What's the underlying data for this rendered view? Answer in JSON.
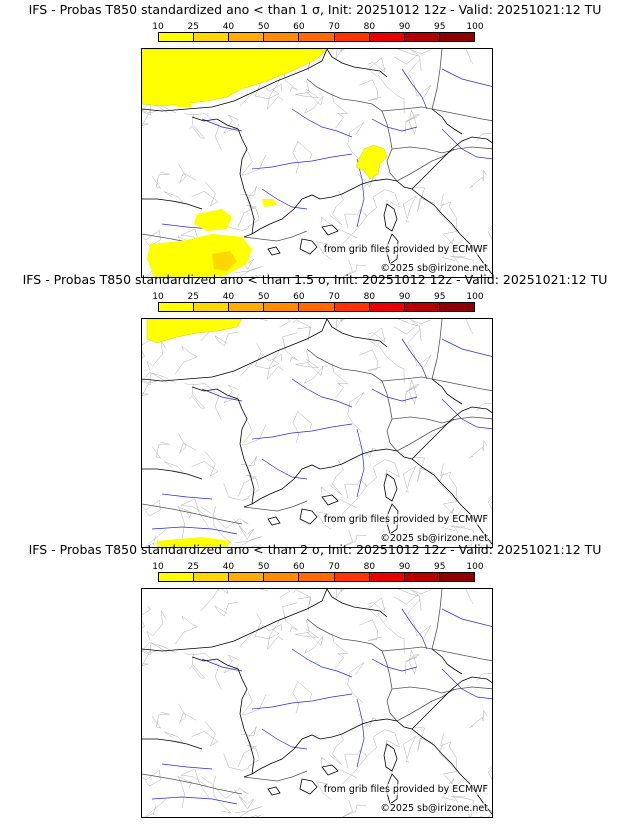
{
  "legend": {
    "labels": [
      "10",
      "25",
      "40",
      "50",
      "60",
      "70",
      "80",
      "90",
      "95",
      "100"
    ],
    "colors": [
      "#ffff00",
      "#ffd700",
      "#ffae00",
      "#ff8c00",
      "#ff6a00",
      "#ff3300",
      "#e60000",
      "#b40000",
      "#8c0000",
      "#5a0000"
    ]
  },
  "panels": [
    {
      "title": "IFS - Probas T850  standardized ano < than 1 σ, Init: 20251012 12z - Valid: 20251021:12 TU",
      "source": "from grib files provided by ECMWF",
      "copyright": "©2025 sb@irizone.net",
      "areas": [
        {
          "region": "southern England / Channel",
          "level": "10-25"
        },
        {
          "region": "Alps (Savoie / Valais)",
          "level": "10-25"
        },
        {
          "region": "northern Spain",
          "level": "10-40"
        }
      ]
    },
    {
      "title": "IFS - Probas T850  standardized ano < than 1.5 σ, Init: 20251012 12z - Valid: 20251021:12 TU",
      "source": "from grib files provided by ECMWF",
      "copyright": "©2025 sb@irizone.net",
      "areas": [
        {
          "region": "southern England",
          "level": "10-25"
        },
        {
          "region": "northern Spain",
          "level": "10-25"
        }
      ]
    },
    {
      "title": "IFS - Probas T850  standardized ano < than 2 σ, Init: 20251012 12z - Valid: 20251021:12 TU",
      "source": "from grib files provided by ECMWF",
      "copyright": "©2025 sb@irizone.net",
      "areas": []
    }
  ]
}
